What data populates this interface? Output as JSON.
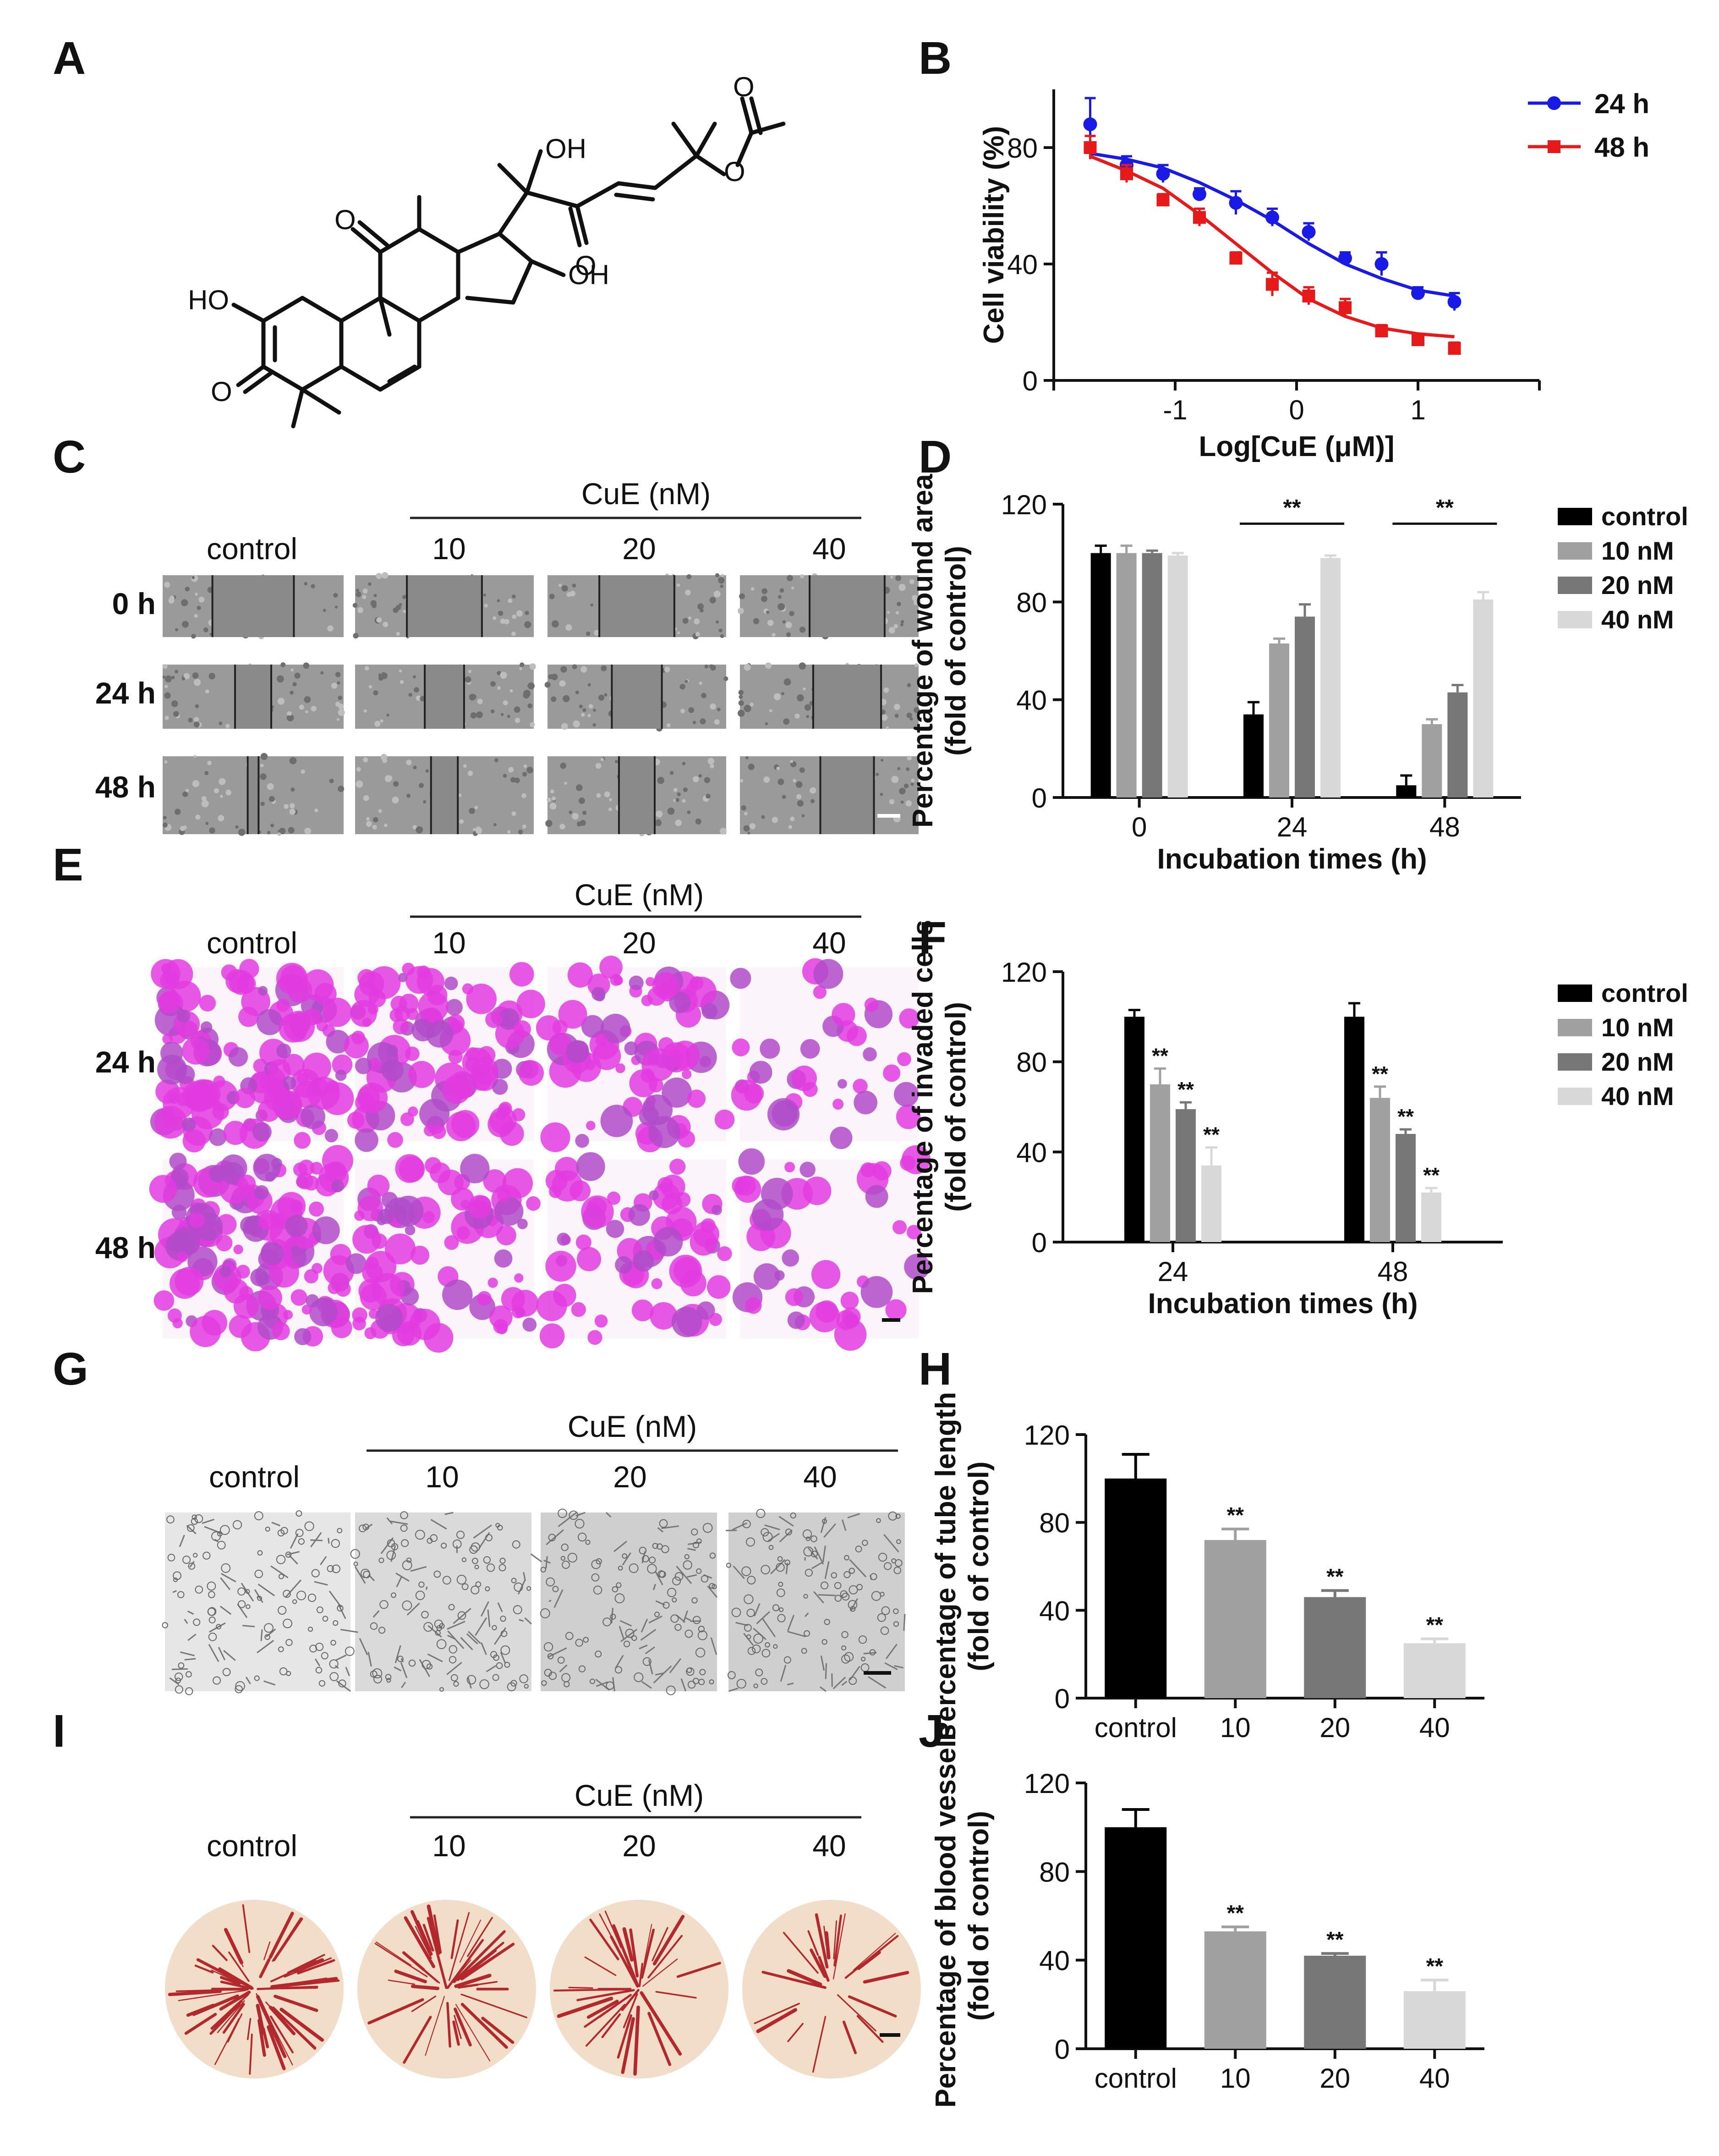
{
  "panel_labels": [
    "A",
    "B",
    "C",
    "D",
    "E",
    "F",
    "G",
    "H",
    "I",
    "J"
  ],
  "figure_text": {
    "cue_header": "CuE (nM)",
    "groups": [
      "control",
      "10",
      "20",
      "40"
    ],
    "c_rows": [
      "0 h",
      "24 h",
      "48 h"
    ],
    "e_rows": [
      "24 h",
      "48 h"
    ],
    "structure_labels": [
      "OH",
      "OH",
      "HO",
      "O",
      "O",
      "O",
      "O",
      "O"
    ]
  },
  "chart_data": [
    {
      "panel": "B",
      "type": "scatter",
      "xlabel": "Log[CuE (μM)]",
      "ylabel": "Cell viability (%)",
      "xlim": [
        -2,
        2
      ],
      "ylim": [
        0,
        100
      ],
      "xticks": [
        "-1",
        "0",
        "1"
      ],
      "yticks": [
        "0",
        "40",
        "80"
      ],
      "legend_position": "top-right",
      "x": [
        -1.7,
        -1.4,
        -1.1,
        -0.8,
        -0.5,
        -0.2,
        0.1,
        0.4,
        0.7,
        1.0,
        1.3
      ],
      "series": [
        {
          "name": "24 h",
          "color": "#1a1ae6",
          "values": [
            88,
            74,
            71,
            64,
            61,
            56,
            51,
            42,
            40,
            30,
            27
          ],
          "errors": [
            9,
            3,
            3,
            2,
            4,
            3,
            3,
            2,
            4,
            2,
            3
          ],
          "fit": [
            78,
            76,
            73,
            68,
            62,
            55,
            47,
            40,
            35,
            31,
            29
          ]
        },
        {
          "name": "48 h",
          "color": "#e61a1a",
          "values": [
            80,
            71,
            62,
            56,
            42,
            33,
            29,
            25,
            17,
            14,
            11
          ],
          "errors": [
            4,
            3,
            2,
            3,
            2,
            4,
            3,
            3,
            2,
            2,
            2
          ],
          "fit": [
            77,
            72,
            66,
            57,
            47,
            37,
            28,
            22,
            18,
            16,
            15
          ]
        }
      ]
    },
    {
      "panel": "D",
      "type": "bar",
      "xlabel": "Incubation times (h)",
      "ylabel": "Percentage of wound area (fold of control)",
      "ylim": [
        0,
        120
      ],
      "yticks": [
        "0",
        "40",
        "80",
        "120"
      ],
      "categories": [
        "0",
        "24",
        "48"
      ],
      "legend_position": "right",
      "significance": [
        "",
        "**",
        "**"
      ],
      "series": [
        {
          "name": "control",
          "color": "#000000",
          "values": [
            100,
            34,
            5
          ],
          "errors": [
            3,
            5,
            4
          ]
        },
        {
          "name": "10 nM",
          "color": "#a0a0a0",
          "values": [
            100,
            63,
            30
          ],
          "errors": [
            3,
            2,
            2
          ]
        },
        {
          "name": "20 nM",
          "color": "#777777",
          "values": [
            100,
            74,
            43
          ],
          "errors": [
            1,
            5,
            3
          ]
        },
        {
          "name": "40 nM",
          "color": "#d8d8d8",
          "values": [
            99,
            98,
            81
          ],
          "errors": [
            1,
            1,
            3
          ]
        }
      ]
    },
    {
      "panel": "F",
      "type": "bar",
      "xlabel": "Incubation times (h)",
      "ylabel": "Percentage of invaded cells (fold of control)",
      "ylim": [
        0,
        120
      ],
      "yticks": [
        "0",
        "40",
        "80",
        "120"
      ],
      "categories": [
        "24",
        "48"
      ],
      "legend_position": "right",
      "series": [
        {
          "name": "control",
          "color": "#000000",
          "values": [
            100,
            100
          ],
          "errors": [
            3,
            6
          ],
          "stars": [
            "",
            ""
          ]
        },
        {
          "name": "10 nM",
          "color": "#a0a0a0",
          "values": [
            70,
            64
          ],
          "errors": [
            7,
            5
          ],
          "stars": [
            "**",
            "**"
          ]
        },
        {
          "name": "20 nM",
          "color": "#777777",
          "values": [
            59,
            48
          ],
          "errors": [
            3,
            2
          ],
          "stars": [
            "**",
            "**"
          ]
        },
        {
          "name": "40 nM",
          "color": "#d8d8d8",
          "values": [
            34,
            22
          ],
          "errors": [
            8,
            2
          ],
          "stars": [
            "**",
            "**"
          ]
        }
      ]
    },
    {
      "panel": "H",
      "type": "bar",
      "ylabel": "Percentage of tube length (fold of control)",
      "ylim": [
        0,
        120
      ],
      "yticks": [
        "0",
        "40",
        "80",
        "120"
      ],
      "categories": [
        "control",
        "10",
        "20",
        "40"
      ],
      "colors": [
        "#000000",
        "#a0a0a0",
        "#777777",
        "#d8d8d8"
      ],
      "values": [
        100,
        72,
        46,
        25
      ],
      "errors": [
        11,
        5,
        3,
        2
      ],
      "stars": [
        "",
        "**",
        "**",
        "**"
      ]
    },
    {
      "panel": "J",
      "type": "bar",
      "ylabel": "Percentage of blood vessels (fold of control)",
      "ylim": [
        0,
        120
      ],
      "yticks": [
        "0",
        "40",
        "80",
        "120"
      ],
      "categories": [
        "control",
        "10",
        "20",
        "40"
      ],
      "colors": [
        "#000000",
        "#a0a0a0",
        "#777777",
        "#d8d8d8"
      ],
      "values": [
        100,
        53,
        42,
        26
      ],
      "errors": [
        8,
        2,
        1,
        5
      ],
      "stars": [
        "",
        "**",
        "**",
        "**"
      ]
    }
  ]
}
